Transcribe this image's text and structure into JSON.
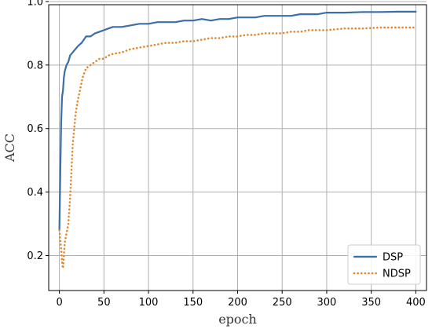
{
  "chart_data": {
    "type": "line",
    "title": "",
    "xlabel": "epoch",
    "ylabel": "ACC",
    "xlim": [
      -12,
      412
    ],
    "ylim": [
      0.09,
      0.99
    ],
    "xticks": [
      0,
      50,
      100,
      150,
      200,
      250,
      300,
      350,
      400
    ],
    "yticks": [
      0.2,
      0.4,
      0.6,
      0.8,
      1.0
    ],
    "ytick_labels": [
      "0.2",
      "0.4",
      "0.6",
      "0.8",
      "1.0"
    ],
    "grid": true,
    "legend_position": "lower-right",
    "series": [
      {
        "name": "DSP",
        "style": "solid",
        "color": "#3a6ea5",
        "x": [
          0,
          1,
          2,
          3,
          4,
          5,
          6,
          8,
          10,
          12,
          15,
          18,
          21,
          25,
          30,
          35,
          40,
          45,
          50,
          55,
          60,
          70,
          80,
          90,
          100,
          110,
          120,
          130,
          140,
          150,
          160,
          170,
          180,
          190,
          200,
          210,
          220,
          230,
          240,
          250,
          260,
          270,
          280,
          290,
          300,
          320,
          340,
          360,
          380,
          400
        ],
        "y": [
          0.28,
          0.45,
          0.62,
          0.7,
          0.72,
          0.76,
          0.78,
          0.8,
          0.81,
          0.83,
          0.84,
          0.85,
          0.86,
          0.87,
          0.89,
          0.89,
          0.9,
          0.905,
          0.91,
          0.915,
          0.92,
          0.92,
          0.925,
          0.93,
          0.93,
          0.935,
          0.935,
          0.935,
          0.94,
          0.94,
          0.945,
          0.94,
          0.945,
          0.945,
          0.95,
          0.95,
          0.95,
          0.955,
          0.955,
          0.955,
          0.955,
          0.96,
          0.96,
          0.96,
          0.965,
          0.965,
          0.967,
          0.967,
          0.968,
          0.968
        ]
      },
      {
        "name": "NDSP",
        "style": "dotted",
        "color": "#e0882f",
        "x": [
          0,
          1,
          2,
          3,
          4,
          5,
          6,
          8,
          10,
          12,
          15,
          18,
          20,
          23,
          26,
          30,
          35,
          40,
          45,
          50,
          55,
          60,
          70,
          80,
          90,
          100,
          110,
          120,
          130,
          140,
          150,
          160,
          170,
          180,
          190,
          200,
          210,
          220,
          230,
          240,
          250,
          260,
          270,
          280,
          290,
          300,
          320,
          340,
          360,
          380,
          400
        ],
        "y": [
          0.28,
          0.25,
          0.22,
          0.18,
          0.16,
          0.2,
          0.24,
          0.27,
          0.3,
          0.38,
          0.55,
          0.64,
          0.68,
          0.72,
          0.76,
          0.79,
          0.8,
          0.81,
          0.82,
          0.82,
          0.83,
          0.835,
          0.84,
          0.85,
          0.855,
          0.86,
          0.865,
          0.87,
          0.87,
          0.875,
          0.875,
          0.88,
          0.885,
          0.885,
          0.89,
          0.89,
          0.895,
          0.895,
          0.9,
          0.9,
          0.9,
          0.905,
          0.905,
          0.91,
          0.91,
          0.91,
          0.915,
          0.915,
          0.918,
          0.918,
          0.918
        ]
      }
    ]
  }
}
